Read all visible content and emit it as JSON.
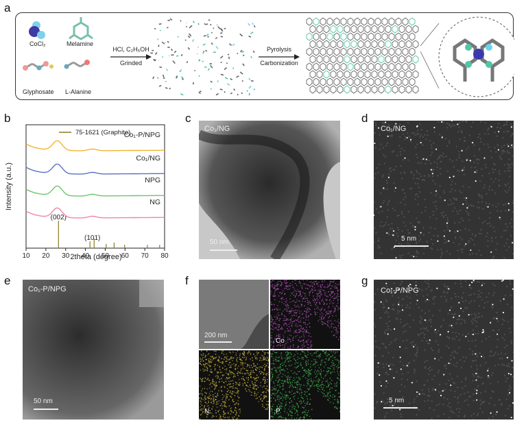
{
  "panels": {
    "a": "a",
    "b": "b",
    "c": "c",
    "d": "d",
    "e": "e",
    "f": "f",
    "g": "g"
  },
  "scheme": {
    "precursors": {
      "cocl2": "CoCl₂",
      "melamine": "Melamine",
      "glyphosate": "Glyphosate",
      "alanine": "L-Alanine"
    },
    "step1_top": "HCl, C₂H₅OH",
    "step1_bottom": "Grinded",
    "step2_top": "Pyrolysis",
    "step2_bottom": "Carbonization"
  },
  "chart_data": {
    "type": "line",
    "xlabel": "2theta (degree)",
    "ylabel": "Intensity (a.u.)",
    "xlim": [
      10,
      80
    ],
    "xticks": [
      10,
      20,
      30,
      40,
      50,
      60,
      70,
      80
    ],
    "legend": "75-1621 (Graphite)",
    "reference_lines": [
      26.4,
      42.3,
      44.4,
      50.5,
      54.5,
      59.8,
      71.3,
      77.5
    ],
    "reference_heights": [
      1.0,
      0.25,
      0.35,
      0.15,
      0.2,
      0.12,
      0.12,
      0.12
    ],
    "peak_labels": [
      {
        "text": "(002)",
        "x": 26.4
      },
      {
        "text": "(101)",
        "x": 43.5
      }
    ],
    "series": [
      {
        "name": "Co₁-P/NPG",
        "color": "#f2b233",
        "offset": 3.0
      },
      {
        "name": "Co₁/NG",
        "color": "#5b6fc4",
        "offset": 2.0
      },
      {
        "name": "NPG",
        "color": "#6cc46c",
        "offset": 1.0
      },
      {
        "name": "NG",
        "color": "#ef86a0",
        "offset": 0.0
      }
    ]
  },
  "micrographs": {
    "c": {
      "label": "Co₁/NG",
      "scale": "50 nm"
    },
    "d": {
      "label": "Co₁/NG",
      "scale": "5 nm"
    },
    "e": {
      "label": "Co₁-P/NPG",
      "scale": "50 nm"
    },
    "f": {
      "scale": "200 nm",
      "co": "Co",
      "n": "N",
      "p": "P"
    },
    "g": {
      "label": "Co₁-P/NPG",
      "scale": "5 nm"
    }
  },
  "colors": {
    "eds_co": "#b04fb8",
    "eds_n": "#c8b43a",
    "eds_p": "#3fb04a"
  }
}
